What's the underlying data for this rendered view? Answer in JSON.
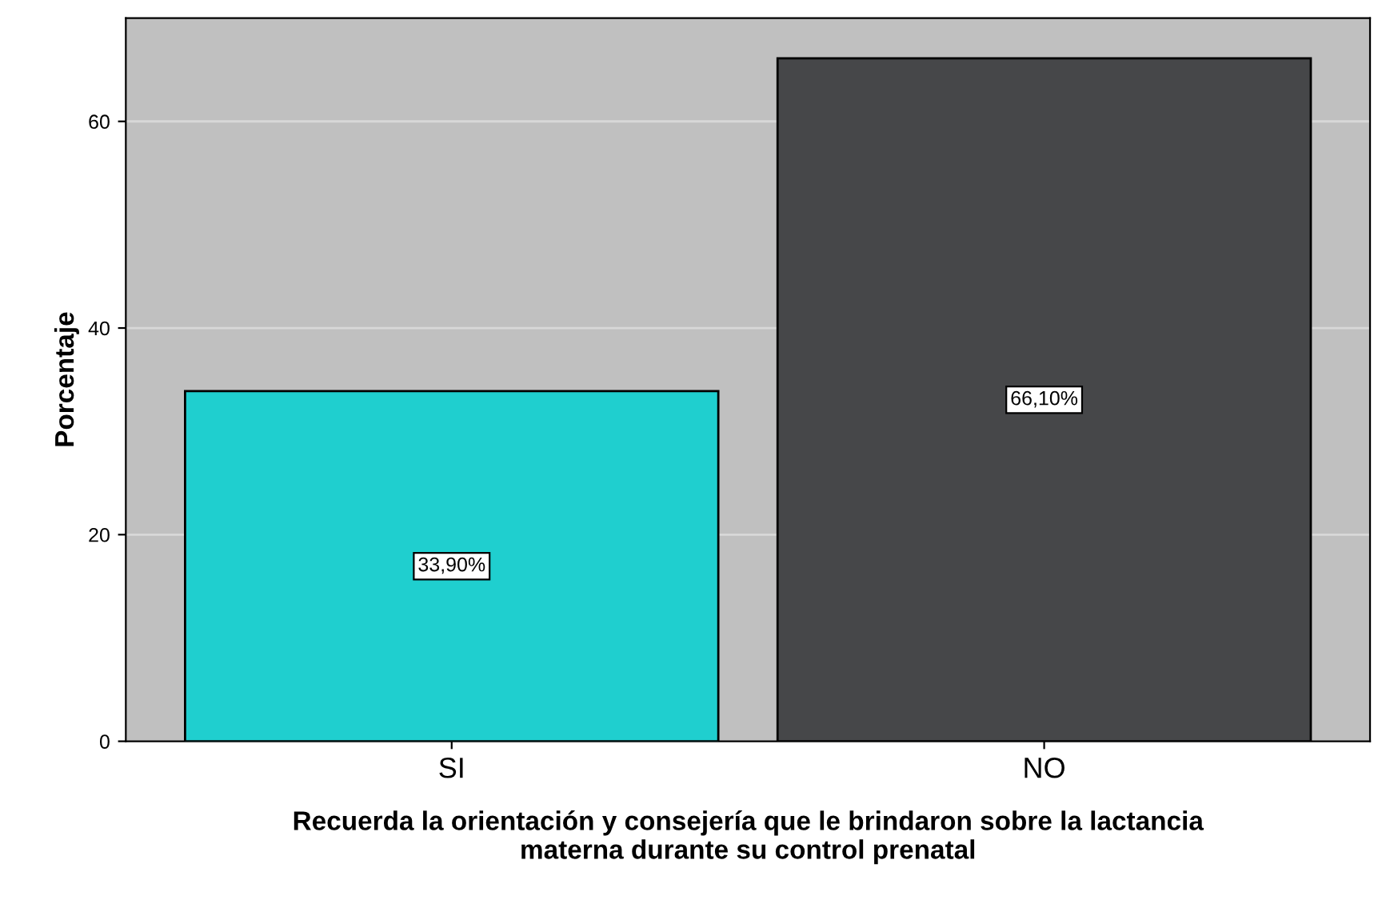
{
  "chart_data": {
    "type": "bar",
    "categories": [
      "SI",
      "NO"
    ],
    "values": [
      33.9,
      66.1
    ],
    "colors": [
      "#1fcfcf",
      "#464749"
    ],
    "value_labels": [
      "33,90%",
      "66,10%"
    ],
    "ylabel": "Porcentaje",
    "xlabel": "Recuerda la orientación y consejería que le brindaron sobre la lactancia\nmaterna durante su control prenatal",
    "ylim": [
      0,
      70
    ],
    "yticks": [
      0,
      20,
      40,
      60
    ],
    "grid": "y"
  }
}
